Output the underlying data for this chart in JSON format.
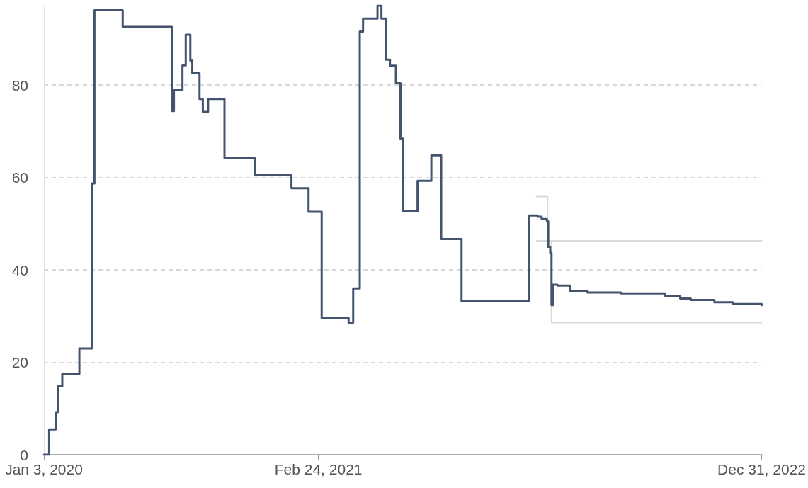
{
  "chart_data": {
    "type": "step",
    "series": [
      {
        "color": "#44546f",
        "x": [
          "2020-01-03",
          "2020-01-11",
          "2020-01-21",
          "2020-01-24",
          "2020-01-31",
          "2020-02-26",
          "2020-03-16",
          "2020-03-20",
          "2020-05-02",
          "2020-07-16",
          "2020-07-19",
          "2020-08-01",
          "2020-08-06",
          "2020-08-13",
          "2020-08-16",
          "2020-08-27",
          "2020-09-01",
          "2020-09-09",
          "2020-10-04",
          "2020-11-19",
          "2021-01-14",
          "2021-02-09",
          "2021-03-01",
          "2021-04-11",
          "2021-04-18",
          "2021-04-28",
          "2021-05-03",
          "2021-05-25",
          "2021-05-31",
          "2021-06-07",
          "2021-06-13",
          "2021-06-22",
          "2021-06-29",
          "2021-07-03",
          "2021-07-25",
          "2021-08-15",
          "2021-08-30",
          "2021-09-30",
          "2022-01-11",
          "2022-01-24",
          "2022-01-30",
          "2022-02-07",
          "2022-02-09",
          "2022-02-12",
          "2022-02-14",
          "2022-02-16",
          "2022-02-23",
          "2022-03-14",
          "2022-04-10",
          "2022-05-31",
          "2022-08-06",
          "2022-08-29",
          "2022-09-14",
          "2022-10-20",
          "2022-11-17",
          "2022-12-31"
        ],
        "values": [
          0,
          5.5,
          9.2,
          14.8,
          17.5,
          23,
          58.7,
          96.2,
          92.6,
          74.4,
          78.9,
          84.3,
          90.9,
          85.3,
          82.6,
          77,
          74.2,
          77,
          64.2,
          60.5,
          57.7,
          52.6,
          29.6,
          28.6,
          36,
          91.6,
          94.4,
          97.2,
          94.4,
          85.5,
          84.2,
          80.4,
          68.4,
          52.7,
          59.3,
          64.8,
          46.7,
          33.2,
          51.8,
          51.5,
          51,
          50.5,
          45,
          43.7,
          32.4,
          36.8,
          36.6,
          35.5,
          35.1,
          34.9,
          34.4,
          33.8,
          33.5,
          33,
          32.6,
          32.4
        ]
      },
      {
        "color": "#d9d9d9",
        "x": [
          "2022-01-22",
          "2022-02-08",
          "2022-12-31"
        ],
        "values": [
          55.9,
          46.3,
          46.3
        ]
      },
      {
        "color": "#d9d9d9",
        "x": [
          "2022-01-22",
          "2022-02-14",
          "2022-12-31"
        ],
        "values": [
          46.3,
          28.6,
          28.6
        ]
      }
    ],
    "xlim": [
      "2020-01-03",
      "2022-12-31"
    ],
    "xticks": [
      {
        "value": "2020-01-03",
        "label": "Jan 3, 2020"
      },
      {
        "value": "2021-02-24",
        "label": "Feb 24, 2021"
      },
      {
        "value": "2022-12-31",
        "label": "Dec 31, 2022"
      }
    ],
    "ylim": [
      0,
      97.2
    ],
    "yticks": [
      0,
      20,
      40,
      60,
      80
    ],
    "grid": "y"
  }
}
